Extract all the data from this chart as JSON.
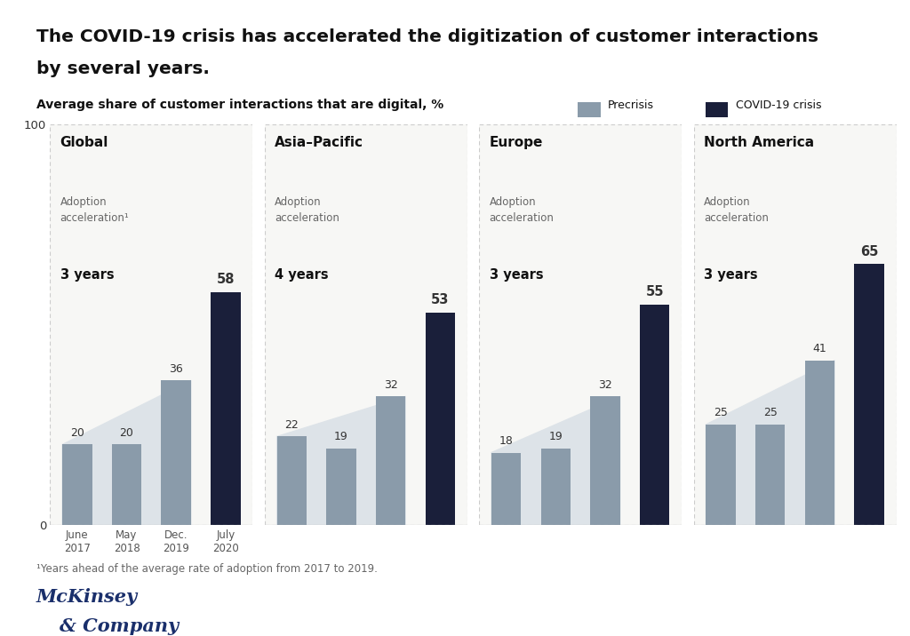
{
  "title_line1": "The COVID-19 crisis has accelerated the digitization of customer interactions",
  "title_line2": "by several years.",
  "subtitle": "Average share of customer interactions that are digital, %",
  "legend_precrisis": "Precrisis",
  "legend_covid": "COVID-19 crisis",
  "footnote": "¹Years ahead of the average rate of adoption from 2017 to 2019.",
  "panels": [
    {
      "title": "Global",
      "accel_label": "Adoption\nacceleration¹",
      "accel_years": "3 years",
      "bars": [
        20,
        20,
        36,
        58
      ],
      "x_labels": [
        "June\n2017",
        "May\n2018",
        "Dec.\n2019",
        "July\n2020"
      ],
      "covid_bar_index": 3,
      "show_xlabels": true,
      "show_ylabels": true
    },
    {
      "title": "Asia–Pacific",
      "accel_label": "Adoption\nacceleration",
      "accel_years": "4 years",
      "bars": [
        22,
        19,
        32,
        53
      ],
      "x_labels": [
        "June\n2017",
        "May\n2018",
        "Dec.\n2019",
        "July\n2020"
      ],
      "covid_bar_index": 3,
      "show_xlabels": false,
      "show_ylabels": false
    },
    {
      "title": "Europe",
      "accel_label": "Adoption\nacceleration",
      "accel_years": "3 years",
      "bars": [
        18,
        19,
        32,
        55
      ],
      "x_labels": [
        "June\n2017",
        "May\n2018",
        "Dec.\n2019",
        "July\n2020"
      ],
      "covid_bar_index": 3,
      "show_xlabels": false,
      "show_ylabels": false
    },
    {
      "title": "North America",
      "accel_label": "Adoption\nacceleration",
      "accel_years": "3 years",
      "bars": [
        25,
        25,
        41,
        65
      ],
      "x_labels": [
        "June\n2017",
        "May\n2018",
        "Dec.\n2019",
        "July\n2020"
      ],
      "covid_bar_index": 3,
      "show_xlabels": false,
      "show_ylabels": false
    }
  ],
  "bg_color": "#ffffff",
  "panel_bg_color": "#f7f7f5",
  "bar_width": 0.6,
  "precrisis_color": "#8a9baa",
  "covid_color": "#1a1f3a",
  "poly_color": "#dde3e8",
  "mckinsey_color": "#1a2f6b",
  "title_color": "#111111",
  "subtitle_color": "#111111",
  "label_color": "#333333",
  "footnote_color": "#666666",
  "border_color": "#cccccc"
}
